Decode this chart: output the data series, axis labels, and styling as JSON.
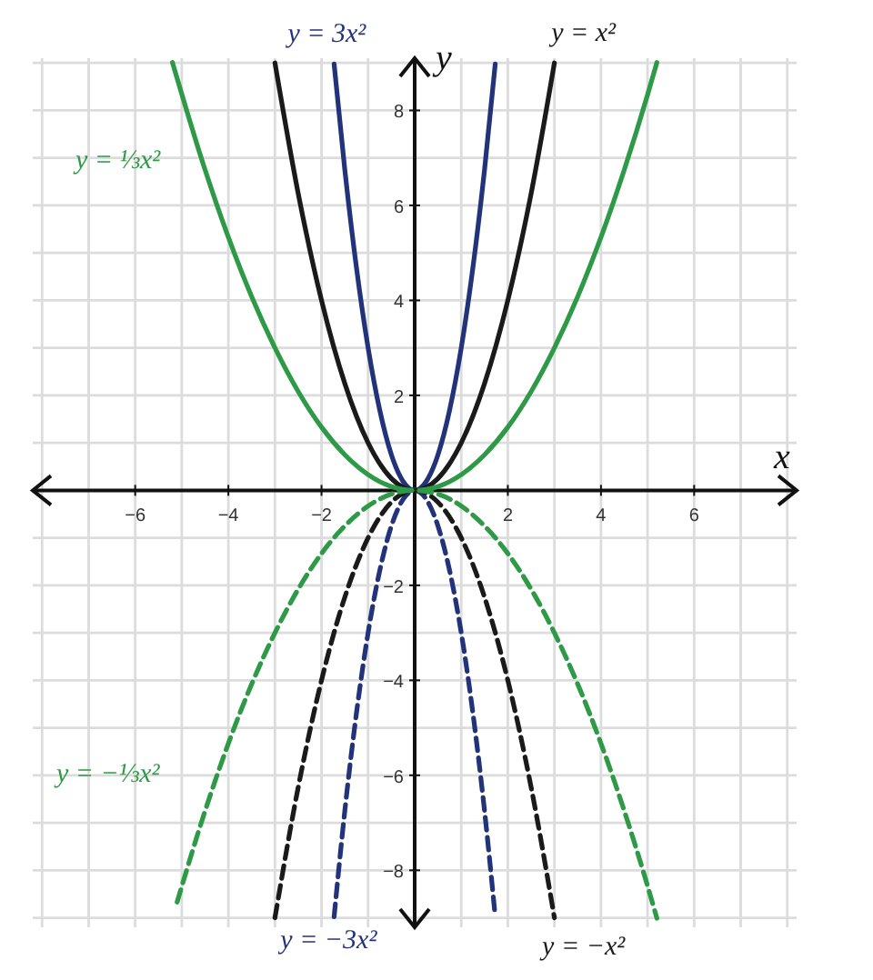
{
  "chart_data": {
    "type": "line",
    "xlabel": "x",
    "ylabel": "y",
    "xlim": [
      -8.2,
      8.2
    ],
    "ylim": [
      -9.2,
      9.1
    ],
    "xticks": [
      {
        "value": -8,
        "label": null
      },
      {
        "value": -7,
        "label": null
      },
      -6,
      {
        "value": -5,
        "label": null
      },
      -4,
      {
        "value": -3,
        "label": null
      },
      -2,
      {
        "value": -1,
        "label": null
      },
      {
        "value": 0,
        "label": null
      },
      {
        "value": 1,
        "label": null
      },
      2,
      {
        "value": 3,
        "label": null
      },
      4,
      {
        "value": 5,
        "label": null
      },
      6,
      {
        "value": 7,
        "label": null
      },
      {
        "value": 8,
        "label": null
      }
    ],
    "yticks": [
      {
        "value": -9,
        "label": null
      },
      -8,
      {
        "value": -7,
        "label": null
      },
      -6,
      {
        "value": -5,
        "label": null
      },
      -4,
      {
        "value": -3,
        "label": null
      },
      -2,
      {
        "value": -1,
        "label": null
      },
      {
        "value": 0,
        "label": null
      },
      {
        "value": 1,
        "label": null
      },
      2,
      {
        "value": 3,
        "label": null
      },
      4,
      {
        "value": 5,
        "label": null
      },
      6,
      {
        "value": 7,
        "label": null
      },
      8,
      {
        "value": 9,
        "label": null
      }
    ],
    "grid": true,
    "series": [
      {
        "name": "y = 3x²",
        "color": "#23337a",
        "line_style": "solid",
        "x": [
          -1.73,
          -1.5,
          -1.25,
          -1,
          -0.75,
          -0.5,
          -0.25,
          0,
          0.25,
          0.5,
          0.75,
          1,
          1.25,
          1.5,
          1.73
        ],
        "values": [
          8.98,
          6.75,
          4.69,
          3,
          1.69,
          0.75,
          0.19,
          0,
          0.19,
          0.75,
          1.69,
          3,
          4.69,
          6.75,
          8.98
        ]
      },
      {
        "name": "y = x²",
        "color": "#1a1a1a",
        "line_style": "solid",
        "x": [
          -3,
          -2.5,
          -2,
          -1.5,
          -1,
          -0.5,
          0,
          0.5,
          1,
          1.5,
          2,
          2.5,
          3
        ],
        "values": [
          9,
          6.25,
          4,
          2.25,
          1,
          0.25,
          0,
          0.25,
          1,
          2.25,
          4,
          6.25,
          9
        ]
      },
      {
        "name": "y = ⅓x²",
        "color": "#2e9a48",
        "line_style": "solid",
        "x": [
          -5.2,
          -4.5,
          -4,
          -3.5,
          -3,
          -2.5,
          -2,
          -1.5,
          -1,
          -0.5,
          0,
          0.5,
          1,
          1.5,
          2,
          2.5,
          3,
          3.5,
          4,
          4.5,
          5,
          5.2
        ],
        "values": [
          9.01,
          6.75,
          5.33,
          4.08,
          3,
          2.08,
          1.33,
          0.75,
          0.33,
          0.08,
          0,
          0.08,
          0.33,
          0.75,
          1.33,
          2.08,
          3,
          4.08,
          5.33,
          6.75,
          8.33,
          9.01
        ]
      },
      {
        "name": "y = −3x²",
        "color": "#23337a",
        "line_style": "dashed",
        "x": [
          -1.73,
          -1.5,
          -1.25,
          -1,
          -0.75,
          -0.5,
          -0.25,
          0,
          0.25,
          0.5,
          0.75,
          1,
          1.25,
          1.5,
          1.73
        ],
        "values": [
          -8.98,
          -6.75,
          -4.69,
          -3,
          -1.69,
          -0.75,
          -0.19,
          0,
          -0.19,
          -0.75,
          -1.69,
          -3,
          -4.69,
          -6.75,
          -8.98
        ]
      },
      {
        "name": "y = −x²",
        "color": "#1a1a1a",
        "line_style": "dashed",
        "x": [
          -3,
          -2.5,
          -2,
          -1.5,
          -1,
          -0.5,
          0,
          0.5,
          1,
          1.5,
          2,
          2.5,
          3
        ],
        "values": [
          -9,
          -6.25,
          -4,
          -2.25,
          -1,
          -0.25,
          0,
          -0.25,
          -1,
          -2.25,
          -4,
          -6.25,
          -9
        ]
      },
      {
        "name": "y = −⅓x²",
        "color": "#2e9a48",
        "line_style": "dashed",
        "x": [
          -5.1,
          -4.5,
          -4,
          -3.5,
          -3,
          -2.5,
          -2,
          -1.5,
          -1,
          -0.5,
          0,
          0.5,
          1,
          1.5,
          2,
          2.5,
          3,
          3.5,
          4,
          4.5,
          5,
          5.2
        ],
        "values": [
          -8.67,
          -6.75,
          -5.33,
          -4.08,
          -3,
          -2.08,
          -1.33,
          -0.75,
          -0.33,
          -0.08,
          0,
          -0.08,
          -0.33,
          -0.75,
          -1.33,
          -2.08,
          -3,
          -4.08,
          -5.33,
          -6.75,
          -8.33,
          -9.01
        ]
      }
    ]
  }
}
